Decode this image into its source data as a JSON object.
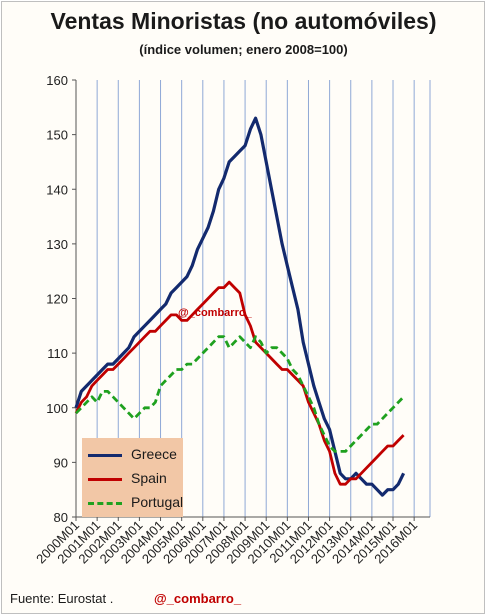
{
  "colors": {
    "greece": "#132a6e",
    "spain": "#c00000",
    "portugal": "#1fa11f",
    "legend_bg": "#f2c7a6",
    "watermark": "#c00000"
  },
  "footer": {
    "source": "Fuente: Eurostat .",
    "handle": "@_combarro_"
  },
  "chart_data": {
    "type": "line",
    "title": "Ventas Minoristas (no automóviles)",
    "subtitle": "(índice volumen; enero 2008=100)",
    "xlabel": "",
    "ylabel": "",
    "ylim": [
      80,
      160
    ],
    "yticks": [
      80,
      90,
      100,
      110,
      120,
      130,
      140,
      150,
      160
    ],
    "xticks": [
      "2000M01",
      "2001M01",
      "2002M01",
      "2003M01",
      "2004M01",
      "2005M01",
      "2006M01",
      "2007M01",
      "2008M01",
      "2009M01",
      "2010M01",
      "2011M01",
      "2012M01",
      "2013M01",
      "2014M01",
      "2015M01",
      "2016M01"
    ],
    "grid": "vertical",
    "legend_position": "bottom-left",
    "annotation": "@_combarro_",
    "series_points_note": "Approximate readings; one point every 3 months.",
    "series": [
      {
        "name": "Greece",
        "style": "solid",
        "values": [
          100,
          103,
          104,
          105,
          106,
          107,
          108,
          108,
          109,
          110,
          111,
          113,
          114,
          115,
          116,
          117,
          118,
          119,
          121,
          122,
          123,
          124,
          126,
          129,
          131,
          133,
          136,
          140,
          142,
          145,
          146,
          147,
          148,
          151,
          153,
          150,
          145,
          140,
          135,
          130,
          126,
          122,
          118,
          112,
          108,
          104,
          101,
          98,
          96,
          92,
          88,
          87,
          87,
          88,
          87,
          86,
          86,
          85,
          84,
          85,
          85,
          86,
          88
        ],
        "start": "2000M01",
        "step_months": 3
      },
      {
        "name": "Spain",
        "style": "solid",
        "values": [
          99,
          101,
          102,
          104,
          105,
          106,
          107,
          107,
          108,
          109,
          110,
          111,
          112,
          113,
          114,
          114,
          115,
          116,
          117,
          117,
          116,
          116,
          117,
          118,
          119,
          120,
          121,
          122,
          122,
          123,
          122,
          121,
          117,
          115,
          112,
          111,
          110,
          109,
          108,
          107,
          107,
          106,
          105,
          104,
          101,
          99,
          97,
          94,
          92,
          88,
          86,
          86,
          87,
          87,
          88,
          89,
          90,
          91,
          92,
          93,
          93,
          94,
          95
        ],
        "start": "2000M01",
        "step_months": 3
      },
      {
        "name": "Portugal",
        "style": "dashed",
        "values": [
          99,
          100,
          101,
          102,
          101,
          103,
          103,
          102,
          101,
          100,
          99,
          98,
          99,
          100,
          100,
          101,
          104,
          105,
          106,
          107,
          107,
          108,
          108,
          109,
          110,
          111,
          112,
          113,
          113,
          111,
          112,
          113,
          112,
          111,
          113,
          112,
          110,
          111,
          111,
          110,
          109,
          107,
          106,
          104,
          102,
          100,
          97,
          95,
          93,
          92,
          92,
          92,
          93,
          94,
          95,
          96,
          97,
          97,
          98,
          99,
          100,
          101,
          102
        ],
        "start": "2000M01",
        "step_months": 3
      }
    ]
  }
}
